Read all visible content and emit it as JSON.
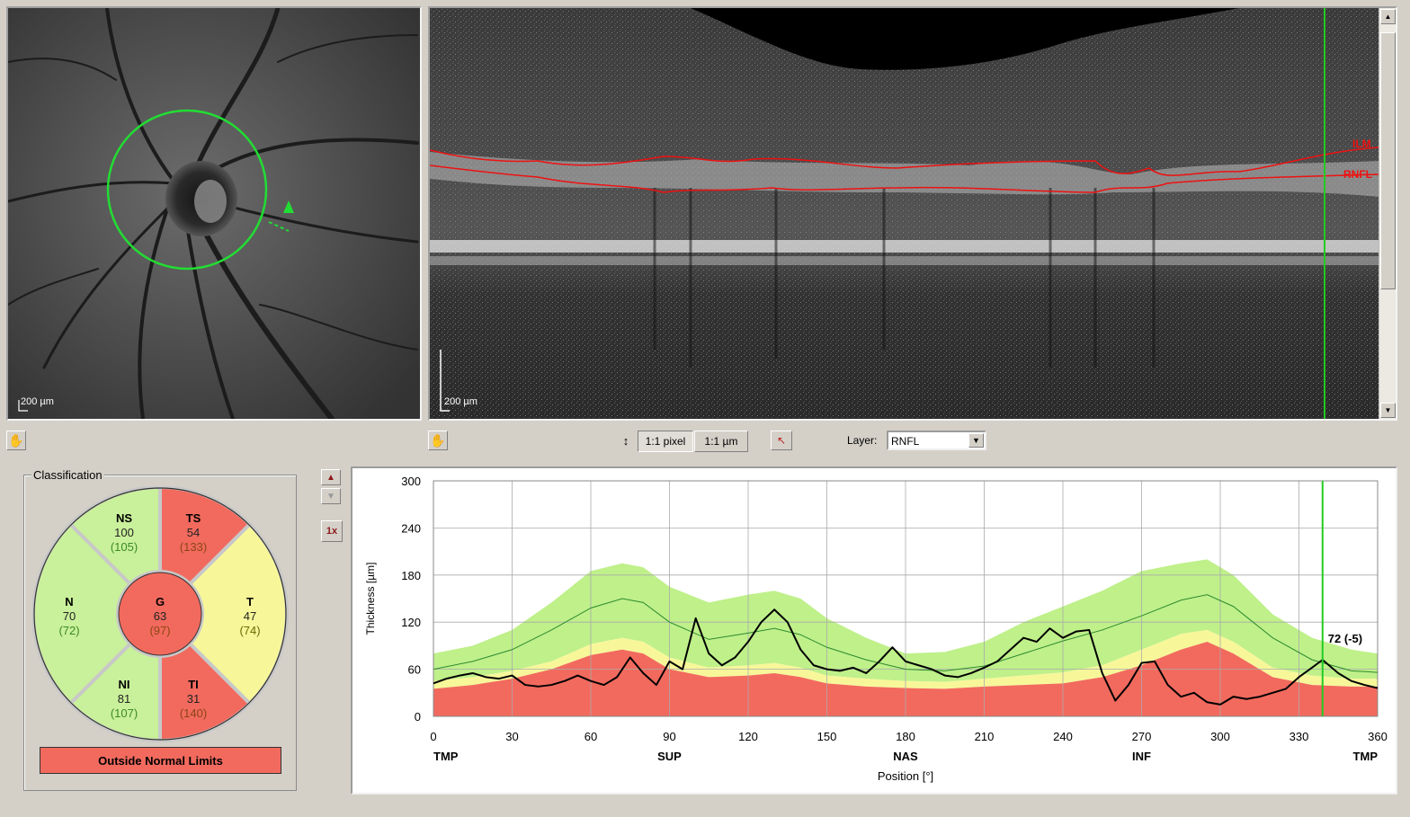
{
  "fundus": {
    "scale_label": "200 µm"
  },
  "bscan": {
    "scale_label": "200 µm",
    "ilm_label": "ILM",
    "rnfl_label": "RNFL"
  },
  "toolbar": {
    "pixel_label": "1:1 pixel",
    "um_label": "1:1 µm",
    "layer_label": "Layer:",
    "layer_value": "RNFL",
    "zoom_label": "1x"
  },
  "classification": {
    "title": "Classification",
    "sectors": [
      {
        "id": "NS",
        "value": "100",
        "normal": "(105)",
        "color": "#c9f09a"
      },
      {
        "id": "TS",
        "value": "54",
        "normal": "(133)",
        "color": "#f26a5e"
      },
      {
        "id": "N",
        "value": "70",
        "normal": "(72)",
        "color": "#c9f09a"
      },
      {
        "id": "G",
        "value": "63",
        "normal": "(97)",
        "color": "#f26a5e"
      },
      {
        "id": "T",
        "value": "47",
        "normal": "(74)",
        "color": "#f7f79a"
      },
      {
        "id": "NI",
        "value": "81",
        "normal": "(107)",
        "color": "#c9f09a"
      },
      {
        "id": "TI",
        "value": "31",
        "normal": "(140)",
        "color": "#f26a5e"
      }
    ],
    "status": "Outside Normal Limits"
  },
  "chart_data": {
    "type": "line",
    "ylabel": "Thickness [µm]",
    "xlabel": "Position [°]",
    "xlim": [
      0,
      360
    ],
    "ylim": [
      0,
      300
    ],
    "xticks": [
      0,
      30,
      60,
      90,
      120,
      150,
      180,
      210,
      240,
      270,
      300,
      330,
      360
    ],
    "yticks": [
      0,
      60,
      120,
      180,
      240,
      300
    ],
    "sector_labels": [
      {
        "x": 0,
        "label": "TMP"
      },
      {
        "x": 90,
        "label": "SUP"
      },
      {
        "x": 180,
        "label": "NAS"
      },
      {
        "x": 270,
        "label": "INF"
      },
      {
        "x": 360,
        "label": "TMP"
      }
    ],
    "cursor": {
      "x": 339,
      "label": "72 (-5)"
    },
    "bands": {
      "x": [
        0,
        15,
        30,
        45,
        60,
        72,
        80,
        90,
        105,
        120,
        130,
        140,
        150,
        165,
        180,
        195,
        210,
        225,
        240,
        255,
        270,
        285,
        295,
        305,
        320,
        335,
        350,
        360
      ],
      "red_upper": [
        35,
        40,
        48,
        60,
        78,
        85,
        80,
        60,
        50,
        52,
        55,
        50,
        42,
        38,
        36,
        35,
        38,
        40,
        42,
        50,
        65,
        85,
        95,
        80,
        50,
        40,
        38,
        38
      ],
      "yellow_upper": [
        45,
        50,
        58,
        70,
        92,
        100,
        95,
        75,
        62,
        65,
        68,
        62,
        52,
        48,
        45,
        44,
        48,
        52,
        56,
        65,
        85,
        105,
        110,
        95,
        62,
        52,
        48,
        48
      ],
      "green_upper": [
        80,
        90,
        110,
        145,
        185,
        195,
        190,
        165,
        145,
        155,
        160,
        150,
        125,
        100,
        80,
        82,
        95,
        120,
        140,
        160,
        185,
        195,
        200,
        180,
        130,
        100,
        85,
        80
      ],
      "normal_line": [
        60,
        70,
        85,
        110,
        138,
        150,
        145,
        120,
        98,
        106,
        112,
        104,
        88,
        72,
        60,
        58,
        64,
        80,
        96,
        110,
        128,
        148,
        155,
        140,
        100,
        72,
        58,
        56
      ]
    },
    "series": [
      {
        "name": "RNFL",
        "x": [
          0,
          5,
          10,
          15,
          20,
          25,
          30,
          35,
          40,
          45,
          50,
          55,
          60,
          65,
          70,
          75,
          80,
          85,
          90,
          95,
          100,
          105,
          110,
          115,
          120,
          125,
          130,
          135,
          140,
          145,
          150,
          155,
          160,
          165,
          170,
          175,
          180,
          185,
          190,
          195,
          200,
          205,
          210,
          215,
          220,
          225,
          230,
          235,
          240,
          245,
          250,
          255,
          260,
          265,
          270,
          275,
          280,
          285,
          290,
          295,
          300,
          305,
          310,
          315,
          320,
          325,
          330,
          335,
          339,
          345,
          350,
          355,
          360
        ],
        "values": [
          42,
          48,
          52,
          55,
          50,
          48,
          52,
          40,
          38,
          40,
          45,
          52,
          45,
          40,
          50,
          75,
          55,
          40,
          70,
          60,
          125,
          80,
          65,
          75,
          95,
          120,
          136,
          120,
          85,
          65,
          60,
          58,
          62,
          55,
          70,
          88,
          70,
          65,
          60,
          52,
          50,
          55,
          62,
          70,
          85,
          100,
          95,
          112,
          100,
          108,
          110,
          55,
          20,
          40,
          68,
          70,
          40,
          25,
          30,
          18,
          15,
          25,
          22,
          25,
          30,
          35,
          50,
          62,
          72,
          55,
          45,
          40,
          36
        ]
      }
    ],
    "colors": {
      "red": "#f26a5e",
      "yellow": "#f7f79a",
      "green": "#bff08a",
      "normal": "#2d8a2d",
      "measurement": "#000000",
      "cursor": "#22cc22"
    }
  }
}
